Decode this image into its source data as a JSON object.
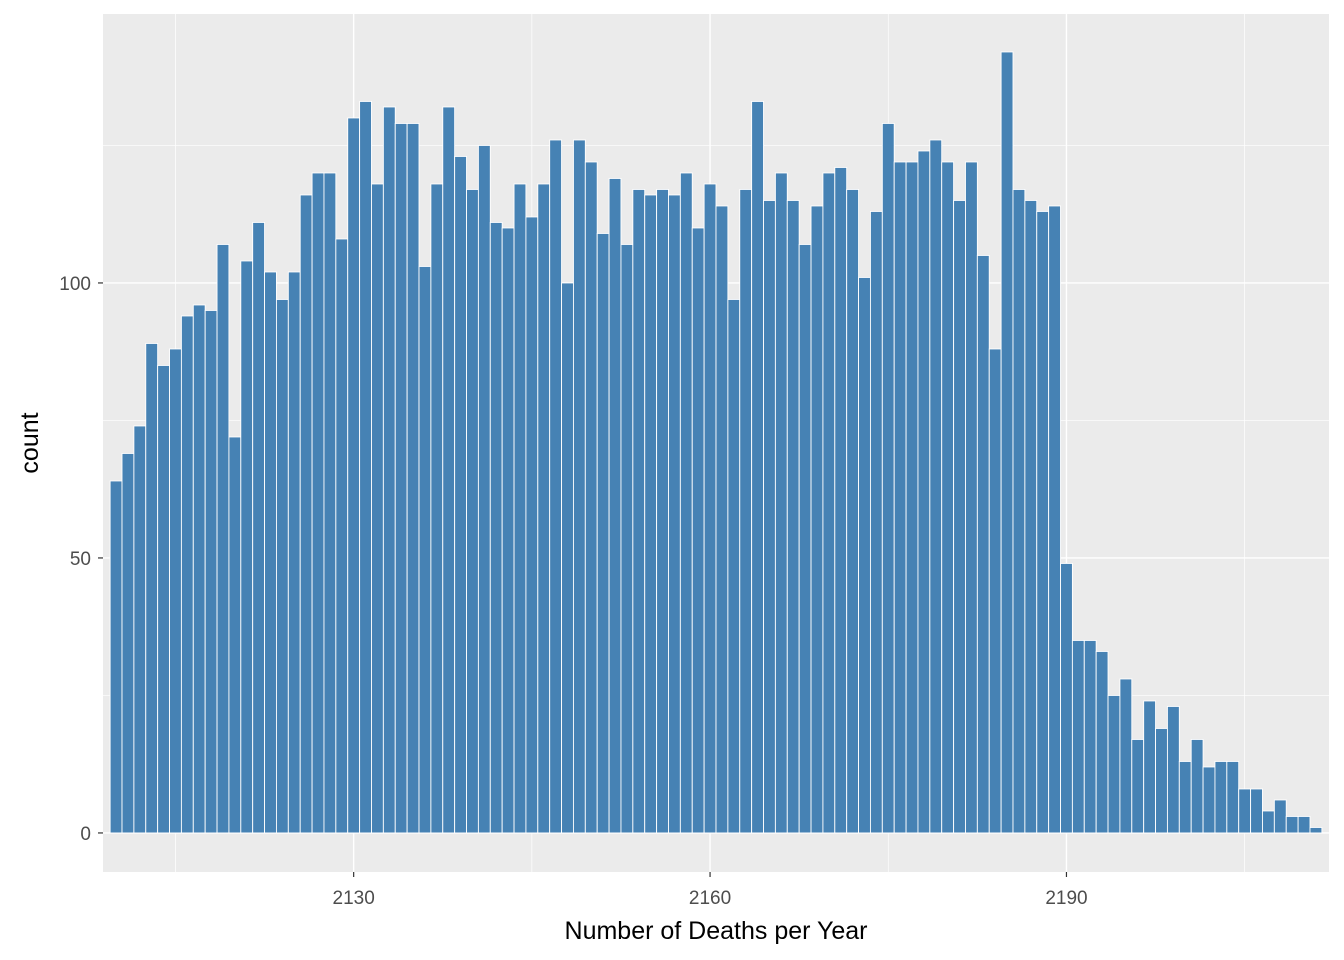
{
  "chart_data": {
    "type": "bar",
    "title": "",
    "xlabel": "Number of Deaths per Year",
    "ylabel": "count",
    "bin_width": 1,
    "x_start": 2110,
    "x_ticks": [
      2130,
      2160,
      2190
    ],
    "y_ticks": [
      0,
      50,
      100
    ],
    "xlim": [
      2108.9,
      2212.1
    ],
    "ylim": [
      -7.1,
      148.9
    ],
    "grid": true,
    "legend": "none",
    "bar_color": "#4682B4",
    "panel_color": "#EBEBEB",
    "grid_color": "#FFFFFF",
    "values": [
      64,
      69,
      74,
      89,
      85,
      88,
      94,
      96,
      95,
      107,
      72,
      104,
      111,
      102,
      97,
      102,
      116,
      120,
      120,
      108,
      130,
      133,
      118,
      132,
      129,
      129,
      103,
      118,
      132,
      123,
      117,
      125,
      111,
      110,
      118,
      112,
      118,
      126,
      100,
      126,
      122,
      109,
      119,
      107,
      117,
      116,
      117,
      116,
      120,
      110,
      118,
      114,
      97,
      117,
      133,
      115,
      120,
      115,
      107,
      114,
      120,
      121,
      117,
      101,
      113,
      129,
      122,
      122,
      124,
      126,
      122,
      115,
      122,
      105,
      88,
      142,
      117,
      115,
      113,
      114,
      49,
      35,
      35,
      33,
      25,
      28,
      17,
      24,
      19,
      23,
      13,
      17,
      12,
      13,
      13,
      8,
      8,
      4,
      6,
      3,
      3,
      1
    ]
  }
}
